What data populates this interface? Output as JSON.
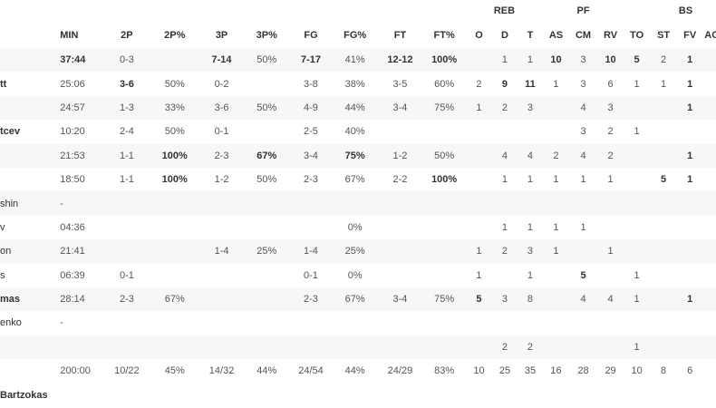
{
  "header": {
    "groups": {
      "reb": "REB",
      "pf": "PF",
      "bs": "BS"
    },
    "columns": [
      "MIN",
      "2P",
      "2P%",
      "3P",
      "3P%",
      "FG",
      "FG%",
      "FT",
      "FT%",
      "O",
      "D",
      "T",
      "AS",
      "CM",
      "RV",
      "TO",
      "ST",
      "FV",
      "AG"
    ]
  },
  "rows": [
    {
      "name": "",
      "bold_name": false,
      "cells": [
        "37:44",
        "0-3",
        "",
        "7-14",
        "50%",
        "7-17",
        "41%",
        "12-12",
        "100%",
        "",
        "1",
        "1",
        "10",
        "3",
        "10",
        "5",
        "2",
        "1",
        ""
      ],
      "bold": [
        0,
        3,
        5,
        7,
        8,
        12,
        14,
        15,
        17
      ]
    },
    {
      "name": "tt",
      "bold_name": true,
      "cells": [
        "25:06",
        "3-6",
        "50%",
        "0-2",
        "",
        "3-8",
        "38%",
        "3-5",
        "60%",
        "2",
        "9",
        "11",
        "1",
        "3",
        "6",
        "1",
        "1",
        "1",
        ""
      ],
      "bold": [
        1,
        10,
        11,
        17
      ]
    },
    {
      "name": "",
      "bold_name": false,
      "cells": [
        "24:57",
        "1-3",
        "33%",
        "3-6",
        "50%",
        "4-9",
        "44%",
        "3-4",
        "75%",
        "1",
        "2",
        "3",
        "",
        "4",
        "3",
        "",
        "",
        "1",
        ""
      ],
      "bold": [
        17
      ]
    },
    {
      "name": "tcev",
      "bold_name": true,
      "cells": [
        "10:20",
        "2-4",
        "50%",
        "0-1",
        "",
        "2-5",
        "40%",
        "",
        "",
        "",
        "",
        "",
        "",
        "3",
        "2",
        "1",
        "",
        "",
        ""
      ],
      "bold": []
    },
    {
      "name": "",
      "bold_name": false,
      "cells": [
        "21:53",
        "1-1",
        "100%",
        "2-3",
        "67%",
        "3-4",
        "75%",
        "1-2",
        "50%",
        "",
        "4",
        "4",
        "2",
        "4",
        "2",
        "",
        "",
        "1",
        ""
      ],
      "bold": [
        2,
        4,
        6,
        17
      ]
    },
    {
      "name": "",
      "bold_name": false,
      "cells": [
        "18:50",
        "1-1",
        "100%",
        "1-2",
        "50%",
        "2-3",
        "67%",
        "2-2",
        "100%",
        "",
        "1",
        "1",
        "1",
        "1",
        "1",
        "",
        "5",
        "1",
        ""
      ],
      "bold": [
        2,
        8,
        16,
        17
      ]
    },
    {
      "name": "shin",
      "bold_name": false,
      "cells": [
        "-",
        "",
        "",
        "",
        "",
        "",
        "",
        "",
        "",
        "",
        "",
        "",
        "",
        "",
        "",
        "",
        "",
        "",
        ""
      ],
      "bold": []
    },
    {
      "name": "v",
      "bold_name": false,
      "cells": [
        "04:36",
        "",
        "",
        "",
        "",
        "",
        "0%",
        "",
        "",
        "",
        "1",
        "1",
        "1",
        "1",
        "",
        "",
        "",
        "",
        ""
      ],
      "bold": []
    },
    {
      "name": "on",
      "bold_name": false,
      "cells": [
        "21:41",
        "",
        "",
        "1-4",
        "25%",
        "1-4",
        "25%",
        "",
        "",
        "1",
        "2",
        "3",
        "1",
        "",
        "1",
        "",
        "",
        "",
        ""
      ],
      "bold": []
    },
    {
      "name": "s",
      "bold_name": false,
      "cells": [
        "06:39",
        "0-1",
        "",
        "",
        "",
        "0-1",
        "0%",
        "",
        "",
        "1",
        "",
        "1",
        "",
        "5",
        "",
        "1",
        "",
        "",
        ""
      ],
      "bold": [
        13
      ]
    },
    {
      "name": "mas",
      "bold_name": true,
      "cells": [
        "28:14",
        "2-3",
        "67%",
        "",
        "",
        "2-3",
        "67%",
        "3-4",
        "75%",
        "5",
        "3",
        "8",
        "",
        "4",
        "4",
        "1",
        "",
        "1",
        ""
      ],
      "bold": [
        9,
        17
      ]
    },
    {
      "name": "enko",
      "bold_name": false,
      "cells": [
        "-",
        "",
        "",
        "",
        "",
        "",
        "",
        "",
        "",
        "",
        "",
        "",
        "",
        "",
        "",
        "",
        "",
        "",
        ""
      ],
      "bold": []
    },
    {
      "name": "",
      "bold_name": false,
      "cells": [
        "",
        "",
        "",
        "",
        "",
        "",
        "",
        "",
        "",
        "",
        "2",
        "2",
        "",
        "",
        "",
        "1",
        "",
        "",
        ""
      ],
      "bold": []
    },
    {
      "name": "",
      "bold_name": false,
      "cells": [
        "200:00",
        "10/22",
        "45%",
        "14/32",
        "44%",
        "24/54",
        "44%",
        "24/29",
        "83%",
        "10",
        "25",
        "35",
        "16",
        "28",
        "29",
        "10",
        "8",
        "6",
        ""
      ],
      "bold": []
    }
  ],
  "coach": {
    "name": "Bartzokas"
  }
}
